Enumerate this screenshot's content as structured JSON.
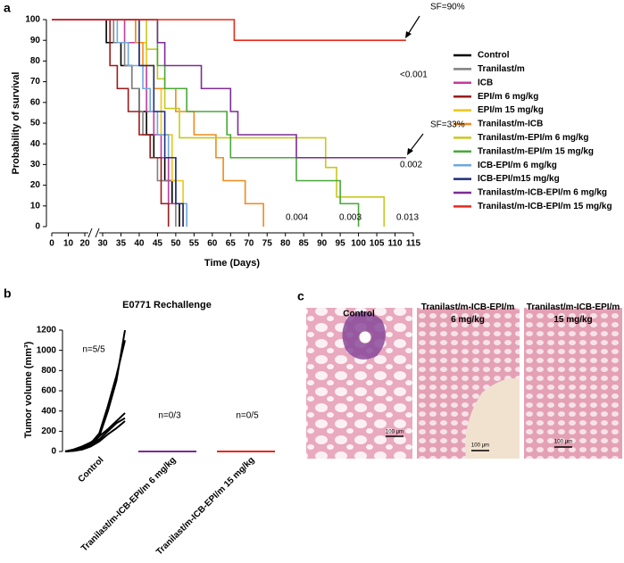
{
  "panel_labels": [
    "a",
    "b",
    "c"
  ],
  "chart_data": [
    {
      "type": "step",
      "ylabel": "Probability of survival",
      "xlabel": "Time (Days)",
      "xlim": [
        0,
        115
      ],
      "x_break": [
        20,
        30
      ],
      "ylim": [
        0,
        100
      ],
      "xticks": [
        0,
        10,
        20,
        30,
        35,
        40,
        45,
        50,
        55,
        60,
        65,
        70,
        75,
        80,
        85,
        90,
        95,
        100,
        105,
        110,
        115
      ],
      "yticks": [
        0,
        10,
        20,
        30,
        40,
        50,
        60,
        70,
        80,
        90,
        100
      ],
      "series": [
        {
          "name": "Control",
          "color": "#000000",
          "x": [
            0,
            31,
            35,
            38,
            40,
            42,
            44,
            47,
            49,
            51
          ],
          "values": [
            100,
            88.9,
            77.8,
            66.7,
            55.6,
            44.4,
            33.3,
            22.2,
            11.1,
            0
          ]
        },
        {
          "name": "Tranilast/m",
          "color": "#808080",
          "x": [
            0,
            33,
            36,
            38,
            40,
            41,
            43,
            45,
            50
          ],
          "values": [
            100,
            88.9,
            77.8,
            66.7,
            55.6,
            44.4,
            33.3,
            22.2,
            0
          ]
        },
        {
          "name": "ICB",
          "color": "#c43c9a",
          "x": [
            0,
            36,
            40,
            42,
            44,
            46,
            48,
            52
          ],
          "values": [
            100,
            88.9,
            77.8,
            55.6,
            44.4,
            33.3,
            11.1,
            0
          ]
        },
        {
          "name": "EPI/m 6 mg/kg",
          "color": "#9b1b1b",
          "x": [
            0,
            32,
            34,
            37,
            40,
            43,
            46,
            48
          ],
          "values": [
            100,
            77.8,
            66.7,
            55.6,
            44.4,
            33.3,
            11.1,
            0
          ]
        },
        {
          "name": "EPI/m 15 mg/kg",
          "color": "#f0c419",
          "x": [
            0,
            39,
            42,
            44,
            46,
            49,
            52
          ],
          "values": [
            100,
            88.9,
            77.8,
            66.7,
            44.4,
            22.2,
            0
          ]
        },
        {
          "name": "Tranilast/m-ICB",
          "color": "#f08a1c",
          "x": [
            0,
            39,
            41,
            44,
            50,
            55,
            61,
            63,
            69,
            72,
            74
          ],
          "values": [
            100,
            88.9,
            77.8,
            66.7,
            55.6,
            44.4,
            33.3,
            22.2,
            11.1,
            11.1,
            0
          ]
        },
        {
          "name": "Tranilast/m-EPI/m 6 mg/kg",
          "color": "#c8c81e",
          "x": [
            0,
            42,
            45,
            47,
            51,
            91,
            94,
            107
          ],
          "values": [
            100,
            85.7,
            71.4,
            57.1,
            42.9,
            28.6,
            14.3,
            0
          ]
        },
        {
          "name": "Tranilast/m-EPI/m 15 mg/kg",
          "color": "#4aa83a",
          "x": [
            0,
            45,
            47,
            53,
            64,
            65,
            83,
            95,
            100
          ],
          "values": [
            100,
            77.8,
            66.7,
            55.6,
            44.4,
            33.3,
            22.2,
            11.1,
            0
          ]
        },
        {
          "name": "ICB-EPI/m 6 mg/kg",
          "color": "#6fa8dc",
          "x": [
            0,
            34,
            37,
            41,
            43,
            45,
            48,
            50,
            53
          ],
          "values": [
            100,
            88.9,
            77.8,
            66.7,
            55.6,
            44.4,
            33.3,
            11.1,
            0
          ]
        },
        {
          "name": "ICB-EPI/m15 mg/kg",
          "color": "#1f2d7a",
          "x": [
            0,
            40,
            44,
            47,
            50,
            52
          ],
          "values": [
            100,
            77.8,
            55.6,
            33.3,
            11.1,
            0
          ]
        },
        {
          "name": "Tranilast/m-ICB-EPI/m 6 mg/kg",
          "color": "#7b2c96",
          "x": [
            0,
            45,
            47,
            57,
            65,
            67,
            83,
            113
          ],
          "values": [
            100,
            88.9,
            77.8,
            66.7,
            55.6,
            44.4,
            33.3,
            33.3
          ]
        },
        {
          "name": "Tranilast/m-ICB-EPI/m 15 mg/kg",
          "color": "#e8281e",
          "x": [
            0,
            66,
            113
          ],
          "values": [
            100,
            90,
            90
          ]
        }
      ],
      "annotations": [
        "SF=90%",
        "<0.001",
        "SF=33%",
        "0.002",
        "0.004",
        "0.003",
        "0.013"
      ]
    },
    {
      "type": "spaghetti",
      "title": "E0771 Rechallenge",
      "ylabel": "Tumor volume (mm³)",
      "ylim": [
        0,
        1200
      ],
      "yticks": [
        0,
        200,
        400,
        600,
        800,
        1000,
        1200
      ],
      "groups": [
        {
          "name": "Control",
          "color": "#000000",
          "label": "n=5/5",
          "curves": [
            [
              0,
              10,
              30,
              60,
              150,
              400,
              700,
              1200
            ],
            [
              0,
              15,
              40,
              80,
              180,
              450,
              750,
              1100
            ],
            [
              0,
              20,
              50,
              90,
              150,
              220,
              300,
              380
            ],
            [
              0,
              10,
              30,
              70,
              120,
              200,
              280,
              330
            ],
            [
              0,
              5,
              20,
              50,
              100,
              170,
              230,
              300
            ]
          ]
        },
        {
          "name": "Tranilast/m-ICB-EPI/m 6 mg/kg",
          "color": "#7b2c96",
          "label": "n=0/3",
          "curves": [
            [
              0,
              0
            ]
          ]
        },
        {
          "name": "Tranilast/m-ICB-EPI/m 15 mg/kg",
          "color": "#e8281e",
          "label": "n=0/5",
          "curves": [
            [
              0,
              0
            ]
          ]
        }
      ]
    }
  ],
  "histology": {
    "columns": [
      "Control",
      "Tranilast/m-ICB-EPI/m 6 mg/kg",
      "Tranilast/m-ICB-EPI/m 15 mg/kg"
    ],
    "scale_bar": "100 μm"
  }
}
